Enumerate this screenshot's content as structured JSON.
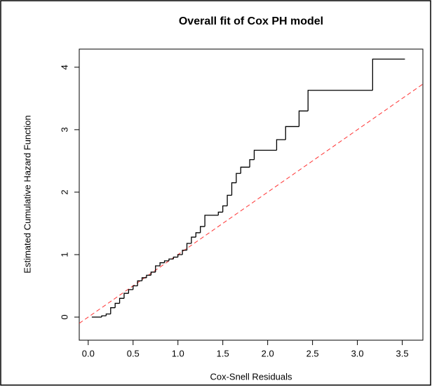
{
  "chart_data": {
    "type": "step",
    "title": "Overall fit of Cox PH model",
    "xlabel": "Cox-Snell Residuals",
    "ylabel": "Estimated Cumulative Hazard Function",
    "x": [
      0.04,
      0.15,
      0.2,
      0.25,
      0.3,
      0.35,
      0.4,
      0.45,
      0.5,
      0.55,
      0.6,
      0.65,
      0.7,
      0.75,
      0.8,
      0.85,
      0.9,
      0.95,
      1.0,
      1.05,
      1.1,
      1.15,
      1.2,
      1.25,
      1.3,
      1.45,
      1.5,
      1.55,
      1.6,
      1.65,
      1.7,
      1.8,
      1.85,
      2.1,
      2.2,
      2.35,
      2.45,
      3.17,
      3.53
    ],
    "series": [
      {
        "color": "#000000",
        "values": [
          0,
          0.02,
          0.05,
          0.15,
          0.22,
          0.3,
          0.38,
          0.44,
          0.5,
          0.58,
          0.63,
          0.67,
          0.72,
          0.82,
          0.87,
          0.9,
          0.93,
          0.96,
          1.0,
          1.07,
          1.18,
          1.28,
          1.35,
          1.45,
          1.63,
          1.68,
          1.78,
          1.95,
          2.15,
          2.3,
          2.4,
          2.52,
          2.67,
          2.84,
          3.05,
          3.3,
          3.63,
          4.13,
          4.13
        ]
      }
    ],
    "reference_line": {
      "slope": 1,
      "intercept": 0,
      "color": "#ff3333",
      "style": "dashed"
    },
    "xlim": [
      -0.1,
      3.73
    ],
    "ylim": [
      -0.37,
      4.29
    ],
    "xticks": [
      {
        "value": 0,
        "label": "0.0"
      },
      0.5,
      {
        "value": 1,
        "label": "1.0"
      },
      1.5,
      {
        "value": 2,
        "label": "2.0"
      },
      2.5,
      {
        "value": 3,
        "label": "3.0"
      },
      3.5
    ],
    "yticks": [
      0,
      1,
      2,
      3,
      4
    ]
  }
}
